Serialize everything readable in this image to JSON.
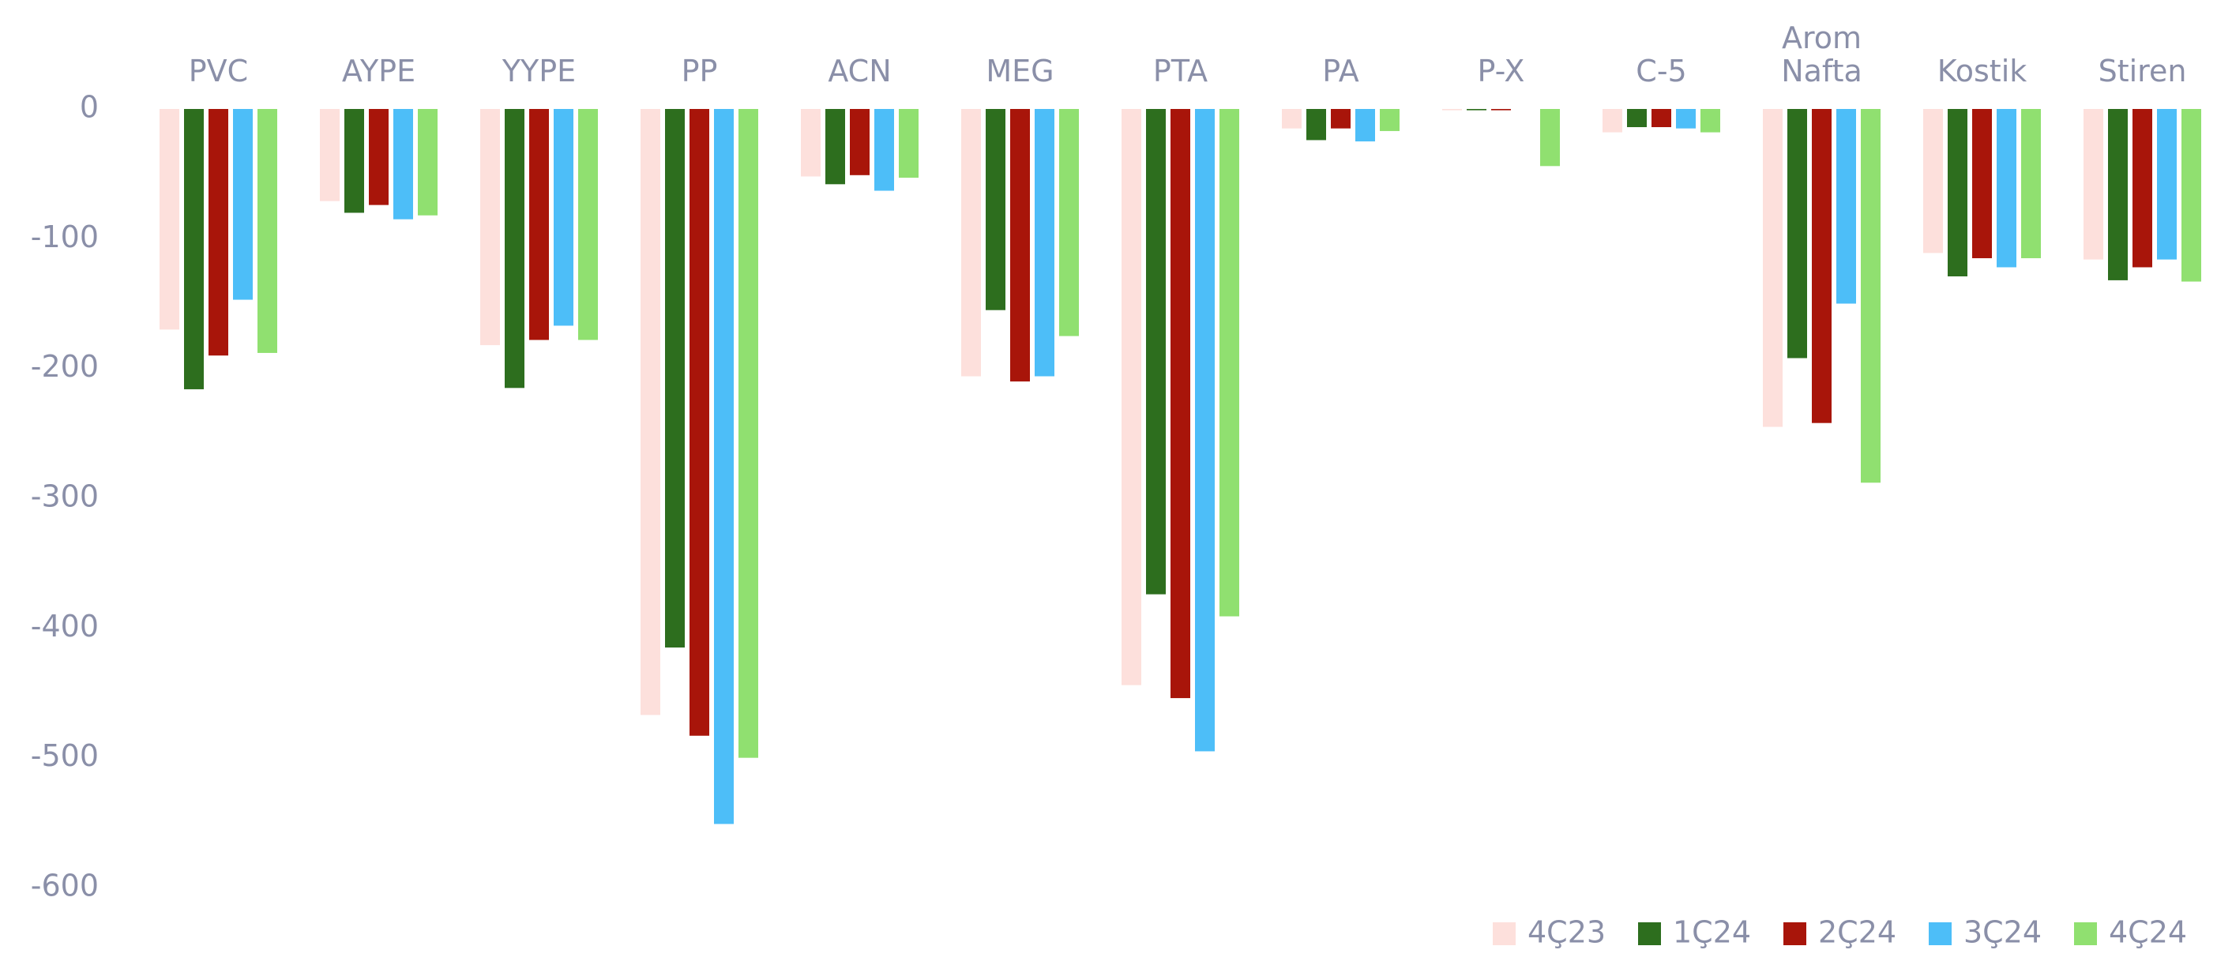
{
  "chart_data": {
    "type": "bar",
    "categories": [
      "PVC",
      "AYPE",
      "YYPE",
      "PP",
      "ACN",
      "MEG",
      "PTA",
      "PA",
      "P-X",
      "C-5",
      "Arom Nafta",
      "Kostik",
      "Stiren"
    ],
    "series": [
      {
        "name": "4Ç23",
        "color": "#fde0dc",
        "values": [
          -170,
          -71,
          -182,
          -467,
          -52,
          -206,
          -444,
          -15,
          -1,
          -18,
          -245,
          -111,
          -116
        ]
      },
      {
        "name": "1Ç24",
        "color": "#2d6e1e",
        "values": [
          -216,
          -80,
          -215,
          -415,
          -58,
          -155,
          -374,
          -24,
          -1,
          -14,
          -192,
          -129,
          -132
        ]
      },
      {
        "name": "2Ç24",
        "color": "#a8150a",
        "values": [
          -190,
          -74,
          -178,
          -483,
          -51,
          -210,
          -454,
          -15,
          -1,
          -14,
          -242,
          -115,
          -122
        ]
      },
      {
        "name": "3Ç24",
        "color": "#4dbef8",
        "values": [
          -147,
          -85,
          -167,
          -551,
          -63,
          -206,
          -495,
          -25,
          0,
          -15,
          -150,
          -122,
          -116
        ]
      },
      {
        "name": "4Ç24",
        "color": "#90e070",
        "values": [
          -188,
          -82,
          -178,
          -500,
          -53,
          -175,
          -391,
          -17,
          -44,
          -18,
          -288,
          -115,
          -133
        ]
      }
    ],
    "ylim": [
      -600,
      0
    ],
    "yticks": [
      0,
      -100,
      -200,
      -300,
      -400,
      -500,
      -600
    ],
    "grid": false,
    "legend": "bottom-right"
  }
}
